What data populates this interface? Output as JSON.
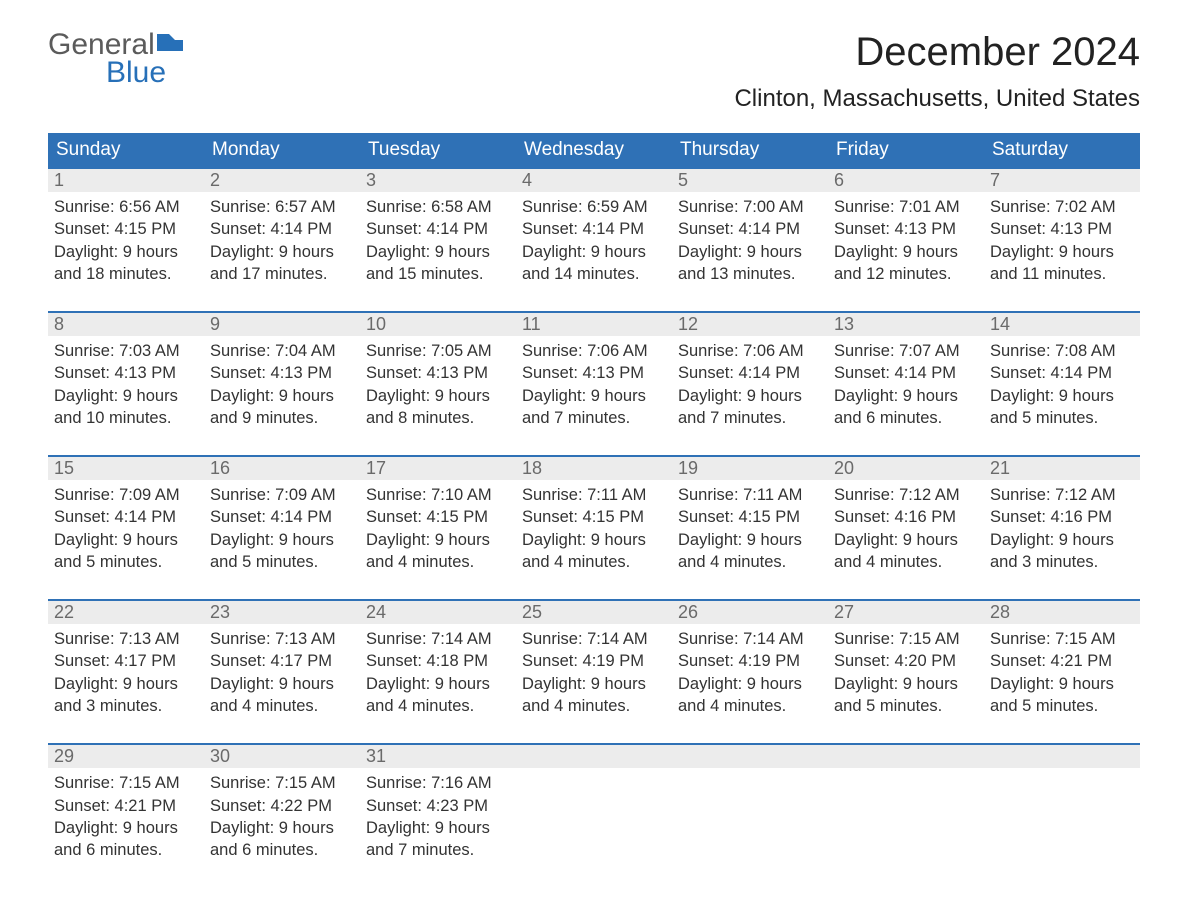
{
  "logo": {
    "word1": "General",
    "word2": "Blue"
  },
  "title": "December 2024",
  "location": "Clinton, Massachusetts, United States",
  "colors": {
    "header_bg": "#2f71b6",
    "header_text": "#ffffff",
    "daynum_bg": "#ececec",
    "daynum_border": "#2f71b6",
    "daynum_text": "#6a6a6a",
    "body_text": "#333333",
    "logo_gray": "#5b5b5b",
    "logo_blue": "#2770b8",
    "background": "#ffffff"
  },
  "typography": {
    "title_fontsize": 40,
    "location_fontsize": 24,
    "dow_fontsize": 19,
    "daynum_fontsize": 18,
    "cell_fontsize": 16.5,
    "logo_fontsize": 30,
    "font_family": "Arial"
  },
  "days_of_week": [
    "Sunday",
    "Monday",
    "Tuesday",
    "Wednesday",
    "Thursday",
    "Friday",
    "Saturday"
  ],
  "weeks": [
    [
      {
        "n": "1",
        "sunrise": "Sunrise: 6:56 AM",
        "sunset": "Sunset: 4:15 PM",
        "d1": "Daylight: 9 hours",
        "d2": "and 18 minutes."
      },
      {
        "n": "2",
        "sunrise": "Sunrise: 6:57 AM",
        "sunset": "Sunset: 4:14 PM",
        "d1": "Daylight: 9 hours",
        "d2": "and 17 minutes."
      },
      {
        "n": "3",
        "sunrise": "Sunrise: 6:58 AM",
        "sunset": "Sunset: 4:14 PM",
        "d1": "Daylight: 9 hours",
        "d2": "and 15 minutes."
      },
      {
        "n": "4",
        "sunrise": "Sunrise: 6:59 AM",
        "sunset": "Sunset: 4:14 PM",
        "d1": "Daylight: 9 hours",
        "d2": "and 14 minutes."
      },
      {
        "n": "5",
        "sunrise": "Sunrise: 7:00 AM",
        "sunset": "Sunset: 4:14 PM",
        "d1": "Daylight: 9 hours",
        "d2": "and 13 minutes."
      },
      {
        "n": "6",
        "sunrise": "Sunrise: 7:01 AM",
        "sunset": "Sunset: 4:13 PM",
        "d1": "Daylight: 9 hours",
        "d2": "and 12 minutes."
      },
      {
        "n": "7",
        "sunrise": "Sunrise: 7:02 AM",
        "sunset": "Sunset: 4:13 PM",
        "d1": "Daylight: 9 hours",
        "d2": "and 11 minutes."
      }
    ],
    [
      {
        "n": "8",
        "sunrise": "Sunrise: 7:03 AM",
        "sunset": "Sunset: 4:13 PM",
        "d1": "Daylight: 9 hours",
        "d2": "and 10 minutes."
      },
      {
        "n": "9",
        "sunrise": "Sunrise: 7:04 AM",
        "sunset": "Sunset: 4:13 PM",
        "d1": "Daylight: 9 hours",
        "d2": "and 9 minutes."
      },
      {
        "n": "10",
        "sunrise": "Sunrise: 7:05 AM",
        "sunset": "Sunset: 4:13 PM",
        "d1": "Daylight: 9 hours",
        "d2": "and 8 minutes."
      },
      {
        "n": "11",
        "sunrise": "Sunrise: 7:06 AM",
        "sunset": "Sunset: 4:13 PM",
        "d1": "Daylight: 9 hours",
        "d2": "and 7 minutes."
      },
      {
        "n": "12",
        "sunrise": "Sunrise: 7:06 AM",
        "sunset": "Sunset: 4:14 PM",
        "d1": "Daylight: 9 hours",
        "d2": "and 7 minutes."
      },
      {
        "n": "13",
        "sunrise": "Sunrise: 7:07 AM",
        "sunset": "Sunset: 4:14 PM",
        "d1": "Daylight: 9 hours",
        "d2": "and 6 minutes."
      },
      {
        "n": "14",
        "sunrise": "Sunrise: 7:08 AM",
        "sunset": "Sunset: 4:14 PM",
        "d1": "Daylight: 9 hours",
        "d2": "and 5 minutes."
      }
    ],
    [
      {
        "n": "15",
        "sunrise": "Sunrise: 7:09 AM",
        "sunset": "Sunset: 4:14 PM",
        "d1": "Daylight: 9 hours",
        "d2": "and 5 minutes."
      },
      {
        "n": "16",
        "sunrise": "Sunrise: 7:09 AM",
        "sunset": "Sunset: 4:14 PM",
        "d1": "Daylight: 9 hours",
        "d2": "and 5 minutes."
      },
      {
        "n": "17",
        "sunrise": "Sunrise: 7:10 AM",
        "sunset": "Sunset: 4:15 PM",
        "d1": "Daylight: 9 hours",
        "d2": "and 4 minutes."
      },
      {
        "n": "18",
        "sunrise": "Sunrise: 7:11 AM",
        "sunset": "Sunset: 4:15 PM",
        "d1": "Daylight: 9 hours",
        "d2": "and 4 minutes."
      },
      {
        "n": "19",
        "sunrise": "Sunrise: 7:11 AM",
        "sunset": "Sunset: 4:15 PM",
        "d1": "Daylight: 9 hours",
        "d2": "and 4 minutes."
      },
      {
        "n": "20",
        "sunrise": "Sunrise: 7:12 AM",
        "sunset": "Sunset: 4:16 PM",
        "d1": "Daylight: 9 hours",
        "d2": "and 4 minutes."
      },
      {
        "n": "21",
        "sunrise": "Sunrise: 7:12 AM",
        "sunset": "Sunset: 4:16 PM",
        "d1": "Daylight: 9 hours",
        "d2": "and 3 minutes."
      }
    ],
    [
      {
        "n": "22",
        "sunrise": "Sunrise: 7:13 AM",
        "sunset": "Sunset: 4:17 PM",
        "d1": "Daylight: 9 hours",
        "d2": "and 3 minutes."
      },
      {
        "n": "23",
        "sunrise": "Sunrise: 7:13 AM",
        "sunset": "Sunset: 4:17 PM",
        "d1": "Daylight: 9 hours",
        "d2": "and 4 minutes."
      },
      {
        "n": "24",
        "sunrise": "Sunrise: 7:14 AM",
        "sunset": "Sunset: 4:18 PM",
        "d1": "Daylight: 9 hours",
        "d2": "and 4 minutes."
      },
      {
        "n": "25",
        "sunrise": "Sunrise: 7:14 AM",
        "sunset": "Sunset: 4:19 PM",
        "d1": "Daylight: 9 hours",
        "d2": "and 4 minutes."
      },
      {
        "n": "26",
        "sunrise": "Sunrise: 7:14 AM",
        "sunset": "Sunset: 4:19 PM",
        "d1": "Daylight: 9 hours",
        "d2": "and 4 minutes."
      },
      {
        "n": "27",
        "sunrise": "Sunrise: 7:15 AM",
        "sunset": "Sunset: 4:20 PM",
        "d1": "Daylight: 9 hours",
        "d2": "and 5 minutes."
      },
      {
        "n": "28",
        "sunrise": "Sunrise: 7:15 AM",
        "sunset": "Sunset: 4:21 PM",
        "d1": "Daylight: 9 hours",
        "d2": "and 5 minutes."
      }
    ],
    [
      {
        "n": "29",
        "sunrise": "Sunrise: 7:15 AM",
        "sunset": "Sunset: 4:21 PM",
        "d1": "Daylight: 9 hours",
        "d2": "and 6 minutes."
      },
      {
        "n": "30",
        "sunrise": "Sunrise: 7:15 AM",
        "sunset": "Sunset: 4:22 PM",
        "d1": "Daylight: 9 hours",
        "d2": "and 6 minutes."
      },
      {
        "n": "31",
        "sunrise": "Sunrise: 7:16 AM",
        "sunset": "Sunset: 4:23 PM",
        "d1": "Daylight: 9 hours",
        "d2": "and 7 minutes."
      },
      null,
      null,
      null,
      null
    ]
  ]
}
